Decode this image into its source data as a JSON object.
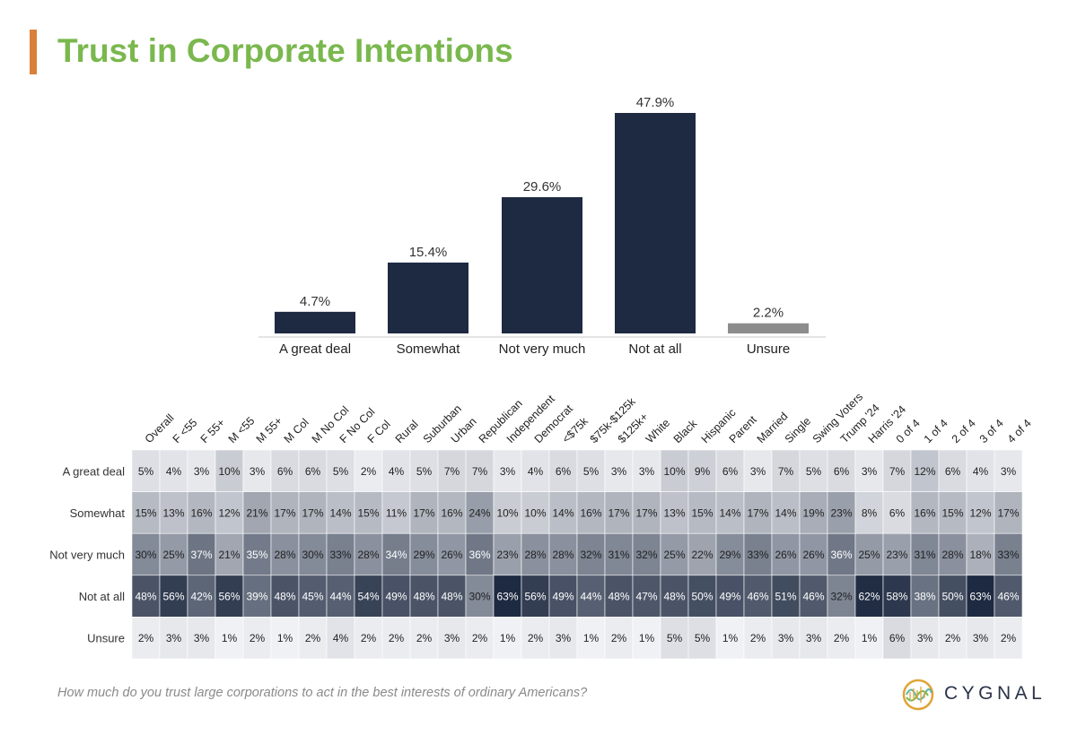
{
  "title": "Trust in Corporate Intentions",
  "question": "How much do you trust large corporations to act in the best interests of ordinary Americans?",
  "logo_text": "CYGNAL",
  "colors": {
    "title": "#7ab84e",
    "accent": "#d9803a",
    "bar": "#1e2a41",
    "unsure_bar": "#8c8c8c",
    "heatmap_dark": "#1e2a41"
  },
  "chart_data": [
    {
      "type": "bar",
      "categories": [
        "A great deal",
        "Somewhat",
        "Not very much",
        "Not at all",
        "Unsure"
      ],
      "values": [
        4.7,
        15.4,
        29.6,
        47.9,
        2.2
      ],
      "value_labels": [
        "4.7%",
        "15.4%",
        "29.6%",
        "47.9%",
        "2.2%"
      ],
      "title": "",
      "xlabel": "",
      "ylabel": "",
      "ylim": [
        0,
        50
      ],
      "grid": false
    },
    {
      "type": "heatmap",
      "columns": [
        "Overall",
        "F <55",
        "F 55+",
        "M <55",
        "M 55+",
        "M Col",
        "M No Col",
        "F No Col",
        "F Col",
        "Rural",
        "Suburban",
        "Urban",
        "Republican",
        "Independent",
        "Democrat",
        "<$75k",
        "$75k-$125k",
        "$125k+",
        "White",
        "Black",
        "Hispanic",
        "Parent",
        "Married",
        "Single",
        "Swing Voters",
        "Trump '24",
        "Harris '24",
        "0 of 4",
        "1 of 4",
        "2 of 4",
        "3 of 4",
        "4 of 4"
      ],
      "rows": [
        "A great deal",
        "Somewhat",
        "Not very much",
        "Not at all",
        "Unsure"
      ],
      "values": [
        [
          5,
          4,
          3,
          10,
          3,
          6,
          6,
          5,
          2,
          4,
          5,
          7,
          7,
          3,
          4,
          6,
          5,
          3,
          3,
          10,
          9,
          6,
          3,
          7,
          5,
          6,
          3,
          7,
          12,
          6,
          4,
          3
        ],
        [
          15,
          13,
          16,
          12,
          21,
          17,
          17,
          14,
          15,
          11,
          17,
          16,
          24,
          10,
          10,
          14,
          16,
          17,
          17,
          13,
          15,
          14,
          17,
          14,
          19,
          23,
          8,
          6,
          16,
          15,
          12,
          17
        ],
        [
          30,
          25,
          37,
          21,
          35,
          28,
          30,
          33,
          28,
          34,
          29,
          26,
          36,
          23,
          28,
          28,
          32,
          31,
          32,
          25,
          22,
          29,
          33,
          26,
          26,
          36,
          25,
          23,
          31,
          28,
          18,
          33
        ],
        [
          48,
          56,
          42,
          56,
          39,
          48,
          45,
          44,
          54,
          49,
          48,
          48,
          30,
          63,
          56,
          49,
          44,
          48,
          47,
          48,
          50,
          49,
          46,
          51,
          46,
          32,
          62,
          58,
          38,
          50,
          63,
          46
        ],
        [
          2,
          3,
          3,
          1,
          2,
          1,
          2,
          4,
          2,
          2,
          2,
          3,
          2,
          1,
          2,
          3,
          1,
          2,
          1,
          5,
          5,
          1,
          2,
          3,
          3,
          2,
          1,
          6,
          3,
          2,
          3,
          2
        ]
      ],
      "unit": "%"
    }
  ]
}
